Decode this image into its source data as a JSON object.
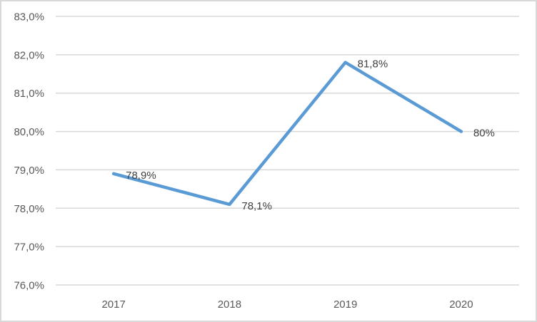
{
  "chart_data": {
    "type": "line",
    "title": "",
    "xlabel": "",
    "ylabel": "",
    "categories": [
      "2017",
      "2018",
      "2019",
      "2020"
    ],
    "values": [
      78.9,
      78.1,
      81.8,
      80
    ],
    "point_labels": [
      "78,9%",
      "78,1%",
      "81,8%",
      "80%"
    ],
    "y_axis": {
      "min": 76,
      "max": 83,
      "step": 1,
      "tick_labels": [
        "83,0%",
        "82,0%",
        "81,0%",
        "80,0%",
        "79,0%",
        "78,0%",
        "77,0%",
        "76,0%"
      ]
    },
    "grid": true,
    "legend": "none",
    "colors": {
      "line": "#5B9BD5",
      "gridline": "#D9D9D9",
      "frame_border": "#D9D9D9",
      "axis_label": "#595959",
      "data_label": "#404040",
      "background": "#FFFFFF"
    }
  }
}
